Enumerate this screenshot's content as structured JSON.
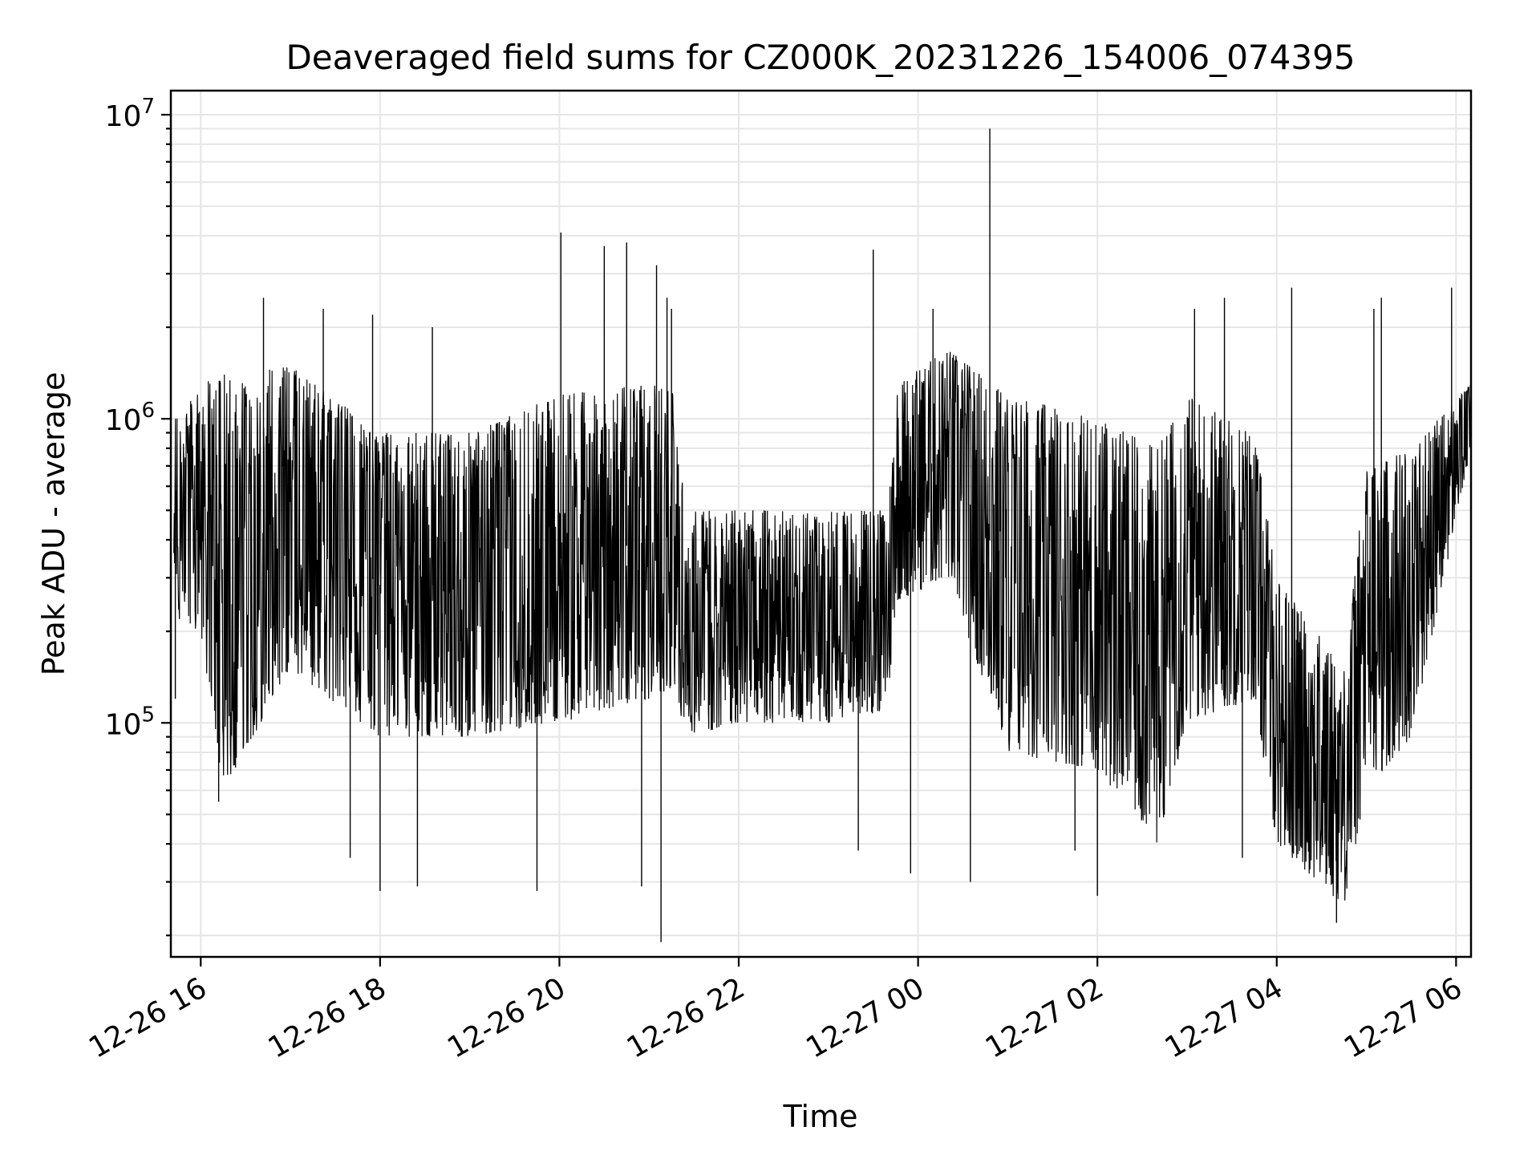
{
  "chart_data": {
    "type": "line",
    "title": "Deaveraged field sums for CZ000K_20231226_154006_074395",
    "xlabel": "Time",
    "ylabel": "Peak ADU - average",
    "yscale": "log",
    "ylim": [
      17000,
      12000000
    ],
    "xlim": [
      "2023-12-26 15:40",
      "2023-12-27 06:10"
    ],
    "grid": true,
    "line_color": "#000000",
    "xticks": [
      {
        "t": "2023-12-26 16:00",
        "label": "12-26 16"
      },
      {
        "t": "2023-12-26 18:00",
        "label": "12-26 18"
      },
      {
        "t": "2023-12-26 20:00",
        "label": "12-26 20"
      },
      {
        "t": "2023-12-26 22:00",
        "label": "12-26 22"
      },
      {
        "t": "2023-12-27 00:00",
        "label": "12-27 00"
      },
      {
        "t": "2023-12-27 02:00",
        "label": "12-27 02"
      },
      {
        "t": "2023-12-27 04:00",
        "label": "12-27 04"
      },
      {
        "t": "2023-12-27 06:00",
        "label": "12-27 06"
      }
    ],
    "yticks": [
      {
        "value": 100000,
        "base": "10",
        "exp": "5"
      },
      {
        "value": 1000000,
        "base": "10",
        "exp": "6"
      },
      {
        "value": 10000000,
        "base": "10",
        "exp": "7"
      }
    ],
    "envelope": [
      {
        "t": "2023-12-26 15:42",
        "low": 220000,
        "high": 1000000
      },
      {
        "t": "2023-12-26 16:00",
        "low": 200000,
        "high": 1300000
      },
      {
        "t": "2023-12-26 16:15",
        "low": 60000,
        "high": 1400000
      },
      {
        "t": "2023-12-26 17:00",
        "low": 150000,
        "high": 1500000
      },
      {
        "t": "2023-12-26 18:00",
        "low": 90000,
        "high": 900000
      },
      {
        "t": "2023-12-26 19:00",
        "low": 90000,
        "high": 900000
      },
      {
        "t": "2023-12-26 20:00",
        "low": 100000,
        "high": 1200000
      },
      {
        "t": "2023-12-26 21:00",
        "low": 120000,
        "high": 1300000
      },
      {
        "t": "2023-12-26 21:15",
        "low": 130000,
        "high": 1300000
      },
      {
        "t": "2023-12-26 21:25",
        "low": 90000,
        "high": 500000
      },
      {
        "t": "2023-12-26 22:00",
        "low": 100000,
        "high": 500000
      },
      {
        "t": "2023-12-26 23:00",
        "low": 100000,
        "high": 500000
      },
      {
        "t": "2023-12-26 23:40",
        "low": 110000,
        "high": 500000
      },
      {
        "t": "2023-12-26 23:45",
        "low": 250000,
        "high": 1300000
      },
      {
        "t": "2023-12-27 00:20",
        "low": 300000,
        "high": 1700000
      },
      {
        "t": "2023-12-27 01:00",
        "low": 80000,
        "high": 1200000
      },
      {
        "t": "2023-12-27 02:00",
        "low": 70000,
        "high": 1000000
      },
      {
        "t": "2023-12-27 02:40",
        "low": 40000,
        "high": 800000
      },
      {
        "t": "2023-12-27 03:00",
        "low": 100000,
        "high": 1200000
      },
      {
        "t": "2023-12-27 03:45",
        "low": 120000,
        "high": 900000
      },
      {
        "t": "2023-12-27 04:00",
        "low": 40000,
        "high": 300000
      },
      {
        "t": "2023-12-27 04:45",
        "low": 25000,
        "high": 150000
      },
      {
        "t": "2023-12-27 05:00",
        "low": 60000,
        "high": 700000
      },
      {
        "t": "2023-12-27 05:30",
        "low": 90000,
        "high": 800000
      },
      {
        "t": "2023-12-27 06:10",
        "low": 800000,
        "high": 1300000
      }
    ],
    "spikes": [
      {
        "t": "2023-12-26 15:43",
        "value": 120000
      },
      {
        "t": "2023-12-26 16:12",
        "value": 55000
      },
      {
        "t": "2023-12-26 16:42",
        "value": 2500000
      },
      {
        "t": "2023-12-26 17:22",
        "value": 2300000
      },
      {
        "t": "2023-12-26 17:40",
        "value": 36000
      },
      {
        "t": "2023-12-26 17:55",
        "value": 2200000
      },
      {
        "t": "2023-12-26 18:00",
        "value": 28000
      },
      {
        "t": "2023-12-26 18:25",
        "value": 29000
      },
      {
        "t": "2023-12-26 18:35",
        "value": 2000000
      },
      {
        "t": "2023-12-26 19:45",
        "value": 28000
      },
      {
        "t": "2023-12-26 20:01",
        "value": 4100000
      },
      {
        "t": "2023-12-26 20:30",
        "value": 3700000
      },
      {
        "t": "2023-12-26 20:45",
        "value": 3800000
      },
      {
        "t": "2023-12-26 20:55",
        "value": 29000
      },
      {
        "t": "2023-12-26 21:05",
        "value": 3200000
      },
      {
        "t": "2023-12-26 21:08",
        "value": 19000
      },
      {
        "t": "2023-12-26 21:12",
        "value": 2500000
      },
      {
        "t": "2023-12-26 21:15",
        "value": 2300000
      },
      {
        "t": "2023-12-26 23:20",
        "value": 38000
      },
      {
        "t": "2023-12-26 23:30",
        "value": 3600000
      },
      {
        "t": "2023-12-26 23:55",
        "value": 32000
      },
      {
        "t": "2023-12-27 00:10",
        "value": 2300000
      },
      {
        "t": "2023-12-27 00:35",
        "value": 30000
      },
      {
        "t": "2023-12-27 00:48",
        "value": 9000000
      },
      {
        "t": "2023-12-27 01:45",
        "value": 38000
      },
      {
        "t": "2023-12-27 02:00",
        "value": 27000
      },
      {
        "t": "2023-12-27 03:05",
        "value": 2300000
      },
      {
        "t": "2023-12-27 03:25",
        "value": 2500000
      },
      {
        "t": "2023-12-27 03:37",
        "value": 36000
      },
      {
        "t": "2023-12-27 04:10",
        "value": 2700000
      },
      {
        "t": "2023-12-27 04:40",
        "value": 22000
      },
      {
        "t": "2023-12-27 05:05",
        "value": 2300000
      },
      {
        "t": "2023-12-27 05:10",
        "value": 2500000
      },
      {
        "t": "2023-12-27 05:57",
        "value": 2700000
      }
    ]
  }
}
